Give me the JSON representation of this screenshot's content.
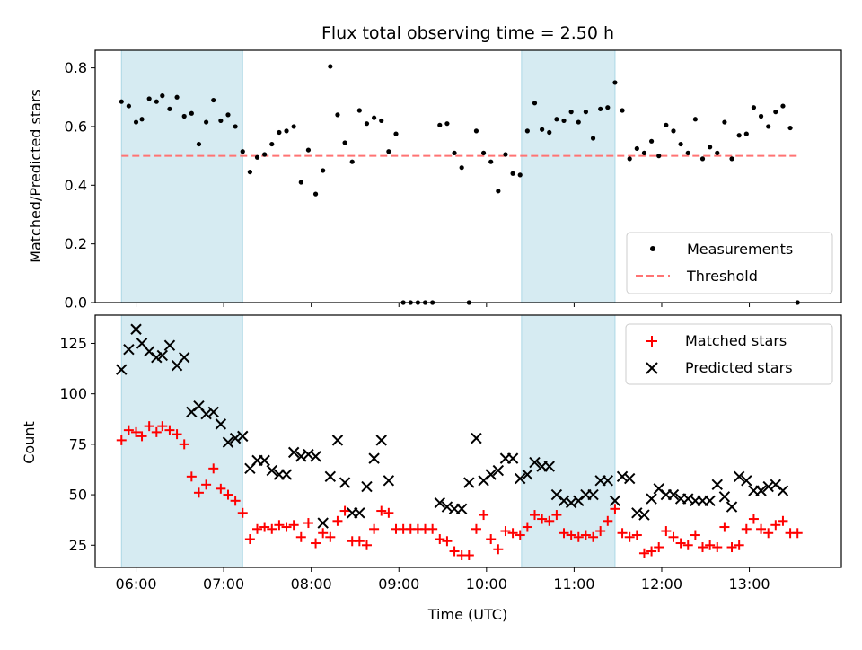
{
  "chart_data": [
    {
      "type": "scatter",
      "title": "Flux total observing time = 2.50 h",
      "xlabel": "",
      "ylabel": "Matched/Predicted stars",
      "ylim": [
        0,
        0.86
      ],
      "xlim": [
        "05:32",
        "14:03"
      ],
      "yticks": [
        "0.0",
        "0.2",
        "0.4",
        "0.6",
        "0.8"
      ],
      "shaded_intervals": [
        [
          "05:50",
          "07:13"
        ],
        [
          "10:24",
          "11:28"
        ]
      ],
      "threshold": {
        "label": "Threshold",
        "value": 0.5,
        "x_from": "05:50",
        "x_to": "13:33",
        "color": "#ff7373"
      },
      "legend": {
        "position": "lower right",
        "entries": [
          "Measurements",
          "Threshold"
        ]
      },
      "series": [
        {
          "name": "Measurements",
          "color": "#000000",
          "marker": "dot",
          "x": [
            "05:50",
            "05:55",
            "06:00",
            "06:04",
            "06:09",
            "06:14",
            "06:18",
            "06:23",
            "06:28",
            "06:33",
            "06:38",
            "06:43",
            "06:48",
            "06:53",
            "06:58",
            "07:03",
            "07:08",
            "07:13",
            "07:18",
            "07:23",
            "07:28",
            "07:33",
            "07:38",
            "07:43",
            "07:48",
            "07:53",
            "07:58",
            "08:03",
            "08:08",
            "08:13",
            "08:18",
            "08:23",
            "08:28",
            "08:33",
            "08:38",
            "08:43",
            "08:48",
            "08:53",
            "08:58",
            "09:03",
            "09:08",
            "09:13",
            "09:18",
            "09:23",
            "09:28",
            "09:33",
            "09:38",
            "09:43",
            "09:48",
            "09:53",
            "09:58",
            "10:03",
            "10:08",
            "10:13",
            "10:18",
            "10:23",
            "10:28",
            "10:33",
            "10:38",
            "10:43",
            "10:48",
            "10:53",
            "10:58",
            "11:03",
            "11:08",
            "11:13",
            "11:18",
            "11:23",
            "11:28",
            "11:33",
            "11:38",
            "11:43",
            "11:48",
            "11:53",
            "11:58",
            "12:03",
            "12:08",
            "12:13",
            "12:18",
            "12:23",
            "12:28",
            "12:33",
            "12:38",
            "12:43",
            "12:48",
            "12:53",
            "12:58",
            "13:03",
            "13:08",
            "13:13",
            "13:18",
            "13:23",
            "13:28",
            "13:33"
          ],
          "y": [
            0.685,
            0.67,
            0.615,
            0.625,
            0.695,
            0.685,
            0.705,
            0.66,
            0.7,
            0.635,
            0.645,
            0.54,
            0.615,
            0.69,
            0.62,
            0.64,
            0.6,
            0.515,
            0.445,
            0.495,
            0.505,
            0.54,
            0.58,
            0.585,
            0.6,
            0.41,
            0.52,
            0.37,
            0.45,
            0.805,
            0.64,
            0.545,
            0.48,
            0.655,
            0.61,
            0.63,
            0.62,
            0.515,
            0.575,
            0.0,
            0.0,
            0.0,
            0.0,
            0.0,
            0.605,
            0.61,
            0.51,
            0.46,
            0.0,
            0.585,
            0.51,
            0.48,
            0.38,
            0.505,
            0.44,
            0.435,
            0.585,
            0.68,
            0.59,
            0.58,
            0.625,
            0.62,
            0.65,
            0.615,
            0.65,
            0.56,
            0.66,
            0.665,
            0.75,
            0.655,
            0.49,
            0.525,
            0.51,
            0.55,
            0.5,
            0.605,
            0.585,
            0.54,
            0.51,
            0.625,
            0.49,
            0.53,
            0.51,
            0.615,
            0.49,
            0.57,
            0.575,
            0.665,
            0.635,
            0.6,
            0.65,
            0.67,
            0.595,
            0.0
          ]
        }
      ]
    },
    {
      "type": "scatter",
      "title": "",
      "xlabel": "Time (UTC)",
      "ylabel": "Count",
      "ylim": [
        14,
        139
      ],
      "xlim": [
        "05:32",
        "14:03"
      ],
      "xticks": [
        "06:00",
        "07:00",
        "08:00",
        "09:00",
        "10:00",
        "11:00",
        "12:00",
        "13:00"
      ],
      "yticks": [
        "25",
        "50",
        "75",
        "100",
        "125"
      ],
      "shaded_intervals": [
        [
          "05:50",
          "07:13"
        ],
        [
          "10:24",
          "11:28"
        ]
      ],
      "legend": {
        "position": "upper right",
        "entries": [
          "Matched stars",
          "Predicted stars"
        ]
      },
      "series": [
        {
          "name": "Matched stars",
          "color": "#ff0000",
          "marker": "plus",
          "x": [
            "05:50",
            "05:55",
            "06:00",
            "06:04",
            "06:09",
            "06:14",
            "06:18",
            "06:23",
            "06:28",
            "06:33",
            "06:38",
            "06:43",
            "06:48",
            "06:53",
            "06:58",
            "07:03",
            "07:08",
            "07:13",
            "07:18",
            "07:23",
            "07:28",
            "07:33",
            "07:38",
            "07:43",
            "07:48",
            "07:53",
            "07:58",
            "08:03",
            "08:08",
            "08:13",
            "08:18",
            "08:23",
            "08:28",
            "08:33",
            "08:38",
            "08:43",
            "08:48",
            "08:53",
            "08:58",
            "09:03",
            "09:08",
            "09:13",
            "09:18",
            "09:23",
            "09:28",
            "09:33",
            "09:38",
            "09:43",
            "09:48",
            "09:53",
            "09:58",
            "10:03",
            "10:08",
            "10:13",
            "10:18",
            "10:23",
            "10:28",
            "10:33",
            "10:38",
            "10:43",
            "10:48",
            "10:53",
            "10:58",
            "11:03",
            "11:08",
            "11:13",
            "11:18",
            "11:23",
            "11:28",
            "11:33",
            "11:38",
            "11:43",
            "11:48",
            "11:53",
            "11:58",
            "12:03",
            "12:08",
            "12:13",
            "12:18",
            "12:23",
            "12:28",
            "12:33",
            "12:38",
            "12:43",
            "12:48",
            "12:53",
            "12:58",
            "13:03",
            "13:08",
            "13:13",
            "13:18",
            "13:23",
            "13:28",
            "13:33"
          ],
          "y": [
            77,
            82,
            81,
            79,
            84,
            81,
            84,
            82,
            80,
            75,
            59,
            51,
            55,
            63,
            53,
            50,
            47,
            41,
            28,
            33,
            34,
            33,
            35,
            34,
            35,
            29,
            36,
            26,
            31,
            29,
            37,
            42,
            27,
            27,
            25,
            33,
            42,
            41,
            33,
            33,
            33,
            33,
            33,
            33,
            28,
            27,
            22,
            20,
            20,
            33,
            40,
            28,
            23,
            32,
            31,
            30,
            34,
            40,
            38,
            37,
            40,
            31,
            30,
            29,
            30,
            29,
            32,
            37,
            43,
            31,
            29,
            30,
            21,
            22,
            24,
            32,
            29,
            26,
            25,
            30,
            24,
            25,
            24,
            34,
            24,
            25,
            33,
            38,
            33,
            31,
            35,
            37,
            31,
            31
          ]
        },
        {
          "name": "Predicted stars",
          "color": "#000000",
          "marker": "cross",
          "x": [
            "05:50",
            "05:55",
            "06:00",
            "06:04",
            "06:09",
            "06:14",
            "06:18",
            "06:23",
            "06:28",
            "06:33",
            "06:38",
            "06:43",
            "06:48",
            "06:53",
            "06:58",
            "07:03",
            "07:08",
            "07:13",
            "07:18",
            "07:23",
            "07:28",
            "07:33",
            "07:38",
            "07:43",
            "07:48",
            "07:53",
            "07:58",
            "08:03",
            "08:08",
            "08:13",
            "08:18",
            "08:23",
            "08:28",
            "08:33",
            "08:38",
            "08:43",
            "08:48",
            "08:53",
            "08:58",
            "09:03",
            "09:08",
            "09:13",
            "09:18",
            "09:23",
            "09:28",
            "09:33",
            "09:38",
            "09:43",
            "09:48",
            "09:53",
            "09:58",
            "10:03",
            "10:08",
            "10:13",
            "10:18",
            "10:23",
            "10:28",
            "10:33",
            "10:38",
            "10:43",
            "10:48",
            "10:53",
            "10:58",
            "11:03",
            "11:08",
            "11:13",
            "11:18",
            "11:23",
            "11:28",
            "11:33",
            "11:38",
            "11:43",
            "11:48",
            "11:53",
            "11:58",
            "12:03",
            "12:08",
            "12:13",
            "12:18",
            "12:23",
            "12:28",
            "12:33",
            "12:38",
            "12:43",
            "12:48",
            "12:53",
            "12:58",
            "13:03",
            "13:08",
            "13:13",
            "13:18",
            "13:23",
            "13:28",
            "13:33"
          ],
          "y": [
            112,
            122,
            132,
            125,
            121,
            118,
            119,
            124,
            114,
            118,
            91,
            94,
            90,
            91,
            85,
            76,
            78,
            79,
            63,
            67,
            67,
            62,
            60,
            60,
            71,
            69,
            70,
            69,
            36,
            59,
            77,
            56,
            41,
            41,
            54,
            68,
            77,
            57,
            null,
            null,
            null,
            null,
            null,
            null,
            46,
            44,
            43,
            43,
            56,
            78,
            57,
            60,
            62,
            68,
            68,
            58,
            60,
            66,
            64,
            64,
            50,
            47,
            46,
            47,
            50,
            50,
            57,
            57,
            47,
            59,
            58,
            41,
            40,
            48,
            53,
            50,
            50,
            48,
            48,
            47,
            47,
            47,
            55,
            49,
            44,
            59,
            57,
            52,
            52,
            54,
            55,
            52,
            null,
            null
          ]
        }
      ]
    }
  ]
}
